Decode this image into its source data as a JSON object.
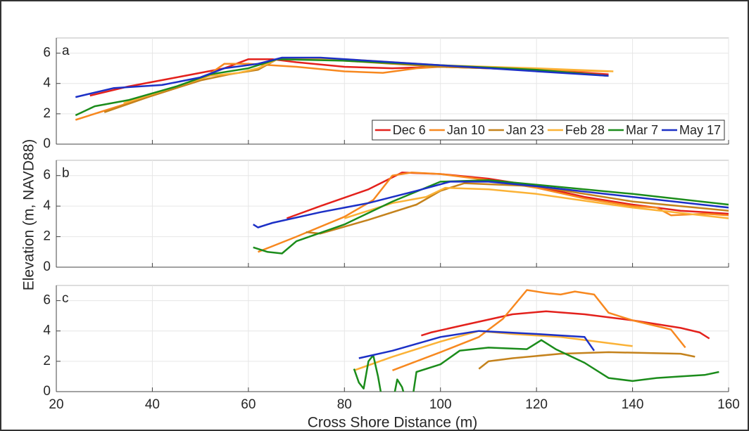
{
  "chart_data": [
    {
      "type": "line",
      "panel_label": "a",
      "xlim": [
        20,
        160
      ],
      "xticks": [
        20,
        40,
        60,
        80,
        100,
        120,
        140,
        160
      ],
      "ylim": [
        0,
        7
      ],
      "yticks": [
        0,
        2,
        4,
        6
      ],
      "grid": true,
      "legend": "lower right",
      "series": [
        {
          "name": "Dec 6",
          "color": "#e3211c",
          "x": [
            27,
            35,
            45,
            55,
            60,
            65,
            70,
            80,
            90,
            100,
            110,
            120,
            135
          ],
          "values": [
            3.2,
            3.8,
            4.4,
            5.0,
            5.6,
            5.6,
            5.4,
            5.1,
            5.0,
            5.1,
            5.0,
            4.9,
            4.6
          ]
        },
        {
          "name": "Jan 10",
          "color": "#f7881f",
          "x": [
            24,
            30,
            40,
            50,
            55,
            60,
            70,
            80,
            88,
            95,
            100,
            110,
            120,
            135
          ],
          "values": [
            1.6,
            2.2,
            3.2,
            4.2,
            5.3,
            5.3,
            5.1,
            4.8,
            4.7,
            5.0,
            5.1,
            5.0,
            4.9,
            4.8
          ]
        },
        {
          "name": "Jan 23",
          "color": "#c4821c",
          "x": [
            30,
            40,
            50,
            56,
            62,
            66,
            75,
            90,
            100,
            120,
            135
          ],
          "values": [
            2.1,
            3.2,
            4.2,
            4.6,
            4.9,
            5.6,
            5.6,
            5.3,
            5.1,
            4.9,
            4.5
          ]
        },
        {
          "name": "Feb 28",
          "color": "#fbb236",
          "x": [
            34,
            45,
            52,
            58,
            62,
            66,
            80,
            100,
            120,
            136
          ],
          "values": [
            2.7,
            3.8,
            4.5,
            4.7,
            5.0,
            5.6,
            5.6,
            5.2,
            5.0,
            4.8
          ]
        },
        {
          "name": "Mar 7",
          "color": "#1b8c1b",
          "x": [
            24,
            28,
            35,
            45,
            52,
            60,
            66,
            80,
            100,
            120,
            135
          ],
          "values": [
            1.9,
            2.5,
            2.9,
            3.8,
            4.6,
            5.0,
            5.6,
            5.5,
            5.2,
            4.9,
            4.5
          ]
        },
        {
          "name": "May 17",
          "color": "#1c30c6",
          "x": [
            24,
            32,
            42,
            50,
            55,
            62,
            67,
            75,
            90,
            100,
            115,
            135
          ],
          "values": [
            3.1,
            3.7,
            3.9,
            4.4,
            5.0,
            5.3,
            5.7,
            5.7,
            5.4,
            5.2,
            4.9,
            4.5
          ]
        }
      ]
    },
    {
      "type": "line",
      "panel_label": "b",
      "ylabel": "Elevation (m, NAVD88)",
      "xlim": [
        20,
        160
      ],
      "xticks": [
        20,
        40,
        60,
        80,
        100,
        120,
        140,
        160
      ],
      "ylim": [
        0,
        7
      ],
      "yticks": [
        0,
        2,
        4,
        6
      ],
      "grid": true,
      "series": [
        {
          "color": "#e3211c",
          "x": [
            68,
            75,
            85,
            92,
            100,
            110,
            120,
            130,
            140,
            150,
            155,
            160
          ],
          "values": [
            3.2,
            4.0,
            5.1,
            6.2,
            6.1,
            5.8,
            5.3,
            4.6,
            4.1,
            3.7,
            3.6,
            3.5
          ]
        },
        {
          "color": "#f7881f",
          "x": [
            62,
            70,
            80,
            86,
            90,
            94,
            100,
            110,
            120,
            130,
            140,
            145,
            148,
            155,
            160
          ],
          "values": [
            1.0,
            2.0,
            3.3,
            4.4,
            6.0,
            6.2,
            6.1,
            5.7,
            5.2,
            4.5,
            4.0,
            3.9,
            3.4,
            3.5,
            3.4
          ]
        },
        {
          "color": "#c4821c",
          "x": [
            72,
            75,
            85,
            95,
            100,
            105,
            120,
            140,
            160
          ],
          "values": [
            2.3,
            2.2,
            3.1,
            4.1,
            5.0,
            5.5,
            5.3,
            4.3,
            3.7
          ]
        },
        {
          "color": "#fbb236",
          "x": [
            80,
            90,
            97,
            101,
            110,
            120,
            140,
            160
          ],
          "values": [
            3.2,
            4.2,
            4.6,
            5.2,
            5.1,
            4.8,
            3.9,
            3.2
          ]
        },
        {
          "color": "#1b8c1b",
          "x": [
            61,
            64,
            67,
            70,
            80,
            90,
            100,
            110,
            120,
            140,
            160
          ],
          "values": [
            1.3,
            1.0,
            0.9,
            1.7,
            2.8,
            4.3,
            5.6,
            5.7,
            5.4,
            4.8,
            4.1
          ]
        },
        {
          "color": "#1c30c6",
          "x": [
            61,
            62,
            65,
            75,
            85,
            95,
            102,
            110,
            120,
            140,
            160
          ],
          "values": [
            2.8,
            2.6,
            2.9,
            3.6,
            4.2,
            5.0,
            5.6,
            5.6,
            5.3,
            4.6,
            3.9
          ]
        }
      ]
    },
    {
      "type": "line",
      "panel_label": "c",
      "xlabel": "Cross Shore Distance (m)",
      "xlim": [
        20,
        160
      ],
      "xticks": [
        20,
        40,
        60,
        80,
        100,
        120,
        140,
        160
      ],
      "ylim": [
        0,
        7
      ],
      "yticks": [
        0,
        2,
        4,
        6
      ],
      "grid": true,
      "series": [
        {
          "color": "#e3211c",
          "x": [
            96,
            98,
            105,
            115,
            122,
            130,
            140,
            150,
            154,
            156
          ],
          "values": [
            3.7,
            3.9,
            4.4,
            5.1,
            5.3,
            5.1,
            4.7,
            4.2,
            3.9,
            3.5
          ]
        },
        {
          "color": "#f7881f",
          "x": [
            90,
            100,
            108,
            113,
            118,
            122,
            125,
            128,
            132,
            135,
            140,
            148,
            151
          ],
          "values": [
            1.4,
            2.6,
            3.6,
            4.8,
            6.7,
            6.5,
            6.4,
            6.6,
            6.4,
            5.2,
            4.7,
            4.1,
            2.9
          ]
        },
        {
          "color": "#c4821c",
          "x": [
            108,
            110,
            115,
            125,
            135,
            150,
            153
          ],
          "values": [
            1.5,
            2.0,
            2.2,
            2.5,
            2.6,
            2.5,
            2.3
          ]
        },
        {
          "color": "#fbb236",
          "x": [
            82,
            90,
            100,
            108,
            115,
            125,
            140
          ],
          "values": [
            1.4,
            2.3,
            3.3,
            4.0,
            3.8,
            3.6,
            3.0
          ]
        },
        {
          "color": "#1b8c1b",
          "x": [
            82,
            83,
            84,
            85,
            86,
            87,
            88,
            90,
            91,
            92,
            93,
            94,
            95,
            100,
            104,
            110,
            118,
            121,
            124,
            130,
            135,
            140,
            145,
            150,
            155,
            158
          ],
          "values": [
            1.5,
            0.6,
            0.2,
            2.0,
            2.4,
            1.0,
            -0.8,
            -0.8,
            0.8,
            0.3,
            -0.8,
            -0.8,
            1.3,
            1.8,
            2.7,
            2.9,
            2.8,
            3.4,
            2.8,
            1.9,
            0.9,
            0.7,
            0.9,
            1.0,
            1.1,
            1.3
          ]
        },
        {
          "color": "#1c30c6",
          "x": [
            83,
            90,
            100,
            108,
            120,
            130,
            132
          ],
          "values": [
            2.2,
            2.7,
            3.6,
            4.0,
            3.8,
            3.6,
            2.7
          ]
        }
      ]
    }
  ]
}
